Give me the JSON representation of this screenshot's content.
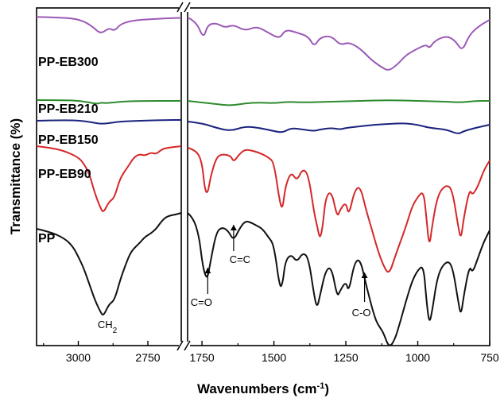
{
  "chart_data": {
    "type": "line",
    "title": "",
    "xlabel": "Wavenumbers (cm",
    "xlabel_sup": "-1",
    "xlabel_close": ")",
    "ylabel": "Transmittance (%)",
    "x_break": true,
    "x_reversed": true,
    "x_segments": [
      {
        "range": [
          3150,
          2630
        ],
        "ticks": [
          3000,
          2750
        ],
        "tick_labels": [
          "3000",
          "2750"
        ]
      },
      {
        "range": [
          1800,
          750
        ],
        "ticks": [
          1750,
          1500,
          1250,
          1000,
          750
        ],
        "tick_labels": [
          "1750",
          "1500",
          "1250",
          "1000",
          "750"
        ]
      }
    ],
    "grid": false,
    "series": [
      {
        "name": "PP-EB300",
        "color": "#9b59b6",
        "points": [
          [
            3150,
            0.4
          ],
          [
            3050,
            1
          ],
          [
            2990,
            4
          ],
          [
            2950,
            12
          ],
          [
            2920,
            22
          ],
          [
            2890,
            14
          ],
          [
            2870,
            18
          ],
          [
            2850,
            10
          ],
          [
            2820,
            6
          ],
          [
            2780,
            4
          ],
          [
            2730,
            3
          ],
          [
            2680,
            2
          ],
          [
            2630,
            1.5
          ],
          [
            1800,
            1
          ],
          [
            1770,
            6
          ],
          [
            1745,
            28
          ],
          [
            1730,
            10
          ],
          [
            1700,
            8
          ],
          [
            1670,
            14
          ],
          [
            1640,
            10
          ],
          [
            1600,
            18
          ],
          [
            1560,
            12
          ],
          [
            1520,
            20
          ],
          [
            1480,
            28
          ],
          [
            1460,
            16
          ],
          [
            1420,
            20
          ],
          [
            1380,
            25
          ],
          [
            1360,
            38
          ],
          [
            1340,
            26
          ],
          [
            1300,
            24
          ],
          [
            1270,
            36
          ],
          [
            1240,
            32
          ],
          [
            1200,
            40
          ],
          [
            1160,
            55
          ],
          [
            1120,
            65
          ],
          [
            1100,
            68
          ],
          [
            1070,
            60
          ],
          [
            1040,
            48
          ],
          [
            1000,
            40
          ],
          [
            970,
            35
          ],
          [
            960,
            40
          ],
          [
            940,
            30
          ],
          [
            900,
            24
          ],
          [
            870,
            30
          ],
          [
            845,
            44
          ],
          [
            820,
            22
          ],
          [
            780,
            10
          ],
          [
            750,
            4
          ]
        ]
      },
      {
        "name": "PP-EB210",
        "color": "#2e8b2e",
        "points": [
          [
            3150,
            0
          ],
          [
            3050,
            0
          ],
          [
            2990,
            1
          ],
          [
            2930,
            5
          ],
          [
            2920,
            3
          ],
          [
            2900,
            4
          ],
          [
            2850,
            2
          ],
          [
            2780,
            1
          ],
          [
            2630,
            1
          ],
          [
            1800,
            1
          ],
          [
            1750,
            3
          ],
          [
            1700,
            5
          ],
          [
            1650,
            7
          ],
          [
            1600,
            4
          ],
          [
            1550,
            3
          ],
          [
            1500,
            4
          ],
          [
            1450,
            2
          ],
          [
            1400,
            3
          ],
          [
            1300,
            2
          ],
          [
            1200,
            1
          ],
          [
            1100,
            0
          ],
          [
            1000,
            1
          ],
          [
            900,
            2
          ],
          [
            850,
            3
          ],
          [
            800,
            1
          ],
          [
            750,
            1
          ]
        ]
      },
      {
        "name": "PP-EB150",
        "color": "#1a237e",
        "points": [
          [
            3150,
            1
          ],
          [
            3050,
            0
          ],
          [
            2990,
            1
          ],
          [
            2950,
            3
          ],
          [
            2920,
            5
          ],
          [
            2890,
            4
          ],
          [
            2850,
            2
          ],
          [
            2780,
            1
          ],
          [
            2680,
            0
          ],
          [
            2630,
            0
          ],
          [
            1800,
            2
          ],
          [
            1750,
            4
          ],
          [
            1700,
            10
          ],
          [
            1650,
            14
          ],
          [
            1600,
            8
          ],
          [
            1550,
            10
          ],
          [
            1500,
            14
          ],
          [
            1470,
            16
          ],
          [
            1440,
            10
          ],
          [
            1400,
            12
          ],
          [
            1360,
            14
          ],
          [
            1340,
            12
          ],
          [
            1300,
            10
          ],
          [
            1270,
            12
          ],
          [
            1250,
            10
          ],
          [
            1200,
            8
          ],
          [
            1150,
            6
          ],
          [
            1100,
            5
          ],
          [
            1050,
            4
          ],
          [
            1000,
            6
          ],
          [
            960,
            10
          ],
          [
            900,
            12
          ],
          [
            860,
            18
          ],
          [
            840,
            14
          ],
          [
            800,
            10
          ],
          [
            750,
            6
          ]
        ]
      },
      {
        "name": "PP-EB90",
        "color": "#d62728",
        "points": [
          [
            3150,
            0
          ],
          [
            3100,
            2
          ],
          [
            3050,
            6
          ],
          [
            3000,
            14
          ],
          [
            2980,
            22
          ],
          [
            2960,
            35
          ],
          [
            2940,
            60
          ],
          [
            2920,
            78
          ],
          [
            2910,
            84
          ],
          [
            2890,
            70
          ],
          [
            2870,
            65
          ],
          [
            2850,
            40
          ],
          [
            2820,
            25
          ],
          [
            2800,
            14
          ],
          [
            2780,
            10
          ],
          [
            2760,
            12
          ],
          [
            2740,
            8
          ],
          [
            2720,
            10
          ],
          [
            2700,
            4
          ],
          [
            2680,
            2
          ],
          [
            2630,
            0
          ],
          [
            1800,
            2
          ],
          [
            1770,
            5
          ],
          [
            1750,
            20
          ],
          [
            1740,
            55
          ],
          [
            1730,
            60
          ],
          [
            1720,
            38
          ],
          [
            1700,
            14
          ],
          [
            1680,
            10
          ],
          [
            1650,
            12
          ],
          [
            1640,
            20
          ],
          [
            1620,
            10
          ],
          [
            1600,
            4
          ],
          [
            1570,
            6
          ],
          [
            1540,
            10
          ],
          [
            1520,
            14
          ],
          [
            1500,
            20
          ],
          [
            1480,
            70
          ],
          [
            1470,
            80
          ],
          [
            1460,
            50
          ],
          [
            1440,
            32
          ],
          [
            1420,
            44
          ],
          [
            1400,
            28
          ],
          [
            1380,
            36
          ],
          [
            1360,
            84
          ],
          [
            1350,
            100
          ],
          [
            1340,
            118
          ],
          [
            1330,
            100
          ],
          [
            1320,
            64
          ],
          [
            1300,
            56
          ],
          [
            1280,
            90
          ],
          [
            1270,
            80
          ],
          [
            1250,
            70
          ],
          [
            1240,
            88
          ],
          [
            1220,
            56
          ],
          [
            1200,
            50
          ],
          [
            1180,
            80
          ],
          [
            1160,
            104
          ],
          [
            1140,
            130
          ],
          [
            1120,
            150
          ],
          [
            1100,
            162
          ],
          [
            1080,
            140
          ],
          [
            1060,
            120
          ],
          [
            1040,
            100
          ],
          [
            1020,
            76
          ],
          [
            1000,
            64
          ],
          [
            980,
            56
          ],
          [
            970,
            90
          ],
          [
            960,
            128
          ],
          [
            950,
            100
          ],
          [
            930,
            60
          ],
          [
            900,
            48
          ],
          [
            880,
            55
          ],
          [
            860,
            100
          ],
          [
            850,
            118
          ],
          [
            840,
            90
          ],
          [
            820,
            54
          ],
          [
            810,
            62
          ],
          [
            790,
            50
          ],
          [
            770,
            30
          ],
          [
            750,
            18
          ]
        ]
      },
      {
        "name": "PP",
        "color": "#111111",
        "points": [
          [
            3150,
            20
          ],
          [
            3100,
            24
          ],
          [
            3050,
            32
          ],
          [
            3020,
            42
          ],
          [
            3000,
            55
          ],
          [
            2980,
            70
          ],
          [
            2960,
            90
          ],
          [
            2940,
            110
          ],
          [
            2920,
            125
          ],
          [
            2910,
            130
          ],
          [
            2890,
            115
          ],
          [
            2870,
            110
          ],
          [
            2850,
            85
          ],
          [
            2830,
            65
          ],
          [
            2810,
            48
          ],
          [
            2780,
            38
          ],
          [
            2760,
            30
          ],
          [
            2740,
            26
          ],
          [
            2720,
            20
          ],
          [
            2700,
            10
          ],
          [
            2680,
            4
          ],
          [
            2650,
            2
          ],
          [
            2630,
            0
          ],
          [
            1800,
            0
          ],
          [
            1780,
            6
          ],
          [
            1760,
            30
          ],
          [
            1750,
            60
          ],
          [
            1740,
            78
          ],
          [
            1730,
            82
          ],
          [
            1720,
            60
          ],
          [
            1700,
            24
          ],
          [
            1680,
            18
          ],
          [
            1660,
            22
          ],
          [
            1640,
            35
          ],
          [
            1620,
            20
          ],
          [
            1600,
            10
          ],
          [
            1580,
            12
          ],
          [
            1560,
            16
          ],
          [
            1540,
            20
          ],
          [
            1520,
            30
          ],
          [
            1500,
            40
          ],
          [
            1480,
            94
          ],
          [
            1470,
            90
          ],
          [
            1460,
            60
          ],
          [
            1440,
            52
          ],
          [
            1420,
            62
          ],
          [
            1400,
            50
          ],
          [
            1380,
            56
          ],
          [
            1360,
            104
          ],
          [
            1350,
            120
          ],
          [
            1340,
            104
          ],
          [
            1320,
            72
          ],
          [
            1300,
            68
          ],
          [
            1280,
            106
          ],
          [
            1270,
            98
          ],
          [
            1250,
            86
          ],
          [
            1240,
            100
          ],
          [
            1220,
            62
          ],
          [
            1200,
            58
          ],
          [
            1180,
            90
          ],
          [
            1160,
            118
          ],
          [
            1150,
            130
          ],
          [
            1140,
            140
          ],
          [
            1120,
            150
          ],
          [
            1100,
            170
          ],
          [
            1080,
            160
          ],
          [
            1060,
            136
          ],
          [
            1040,
            110
          ],
          [
            1020,
            86
          ],
          [
            1000,
            72
          ],
          [
            980,
            66
          ],
          [
            970,
            110
          ],
          [
            960,
            140
          ],
          [
            950,
            124
          ],
          [
            930,
            76
          ],
          [
            900,
            60
          ],
          [
            880,
            66
          ],
          [
            860,
            110
          ],
          [
            850,
            130
          ],
          [
            840,
            104
          ],
          [
            820,
            66
          ],
          [
            810,
            76
          ],
          [
            790,
            56
          ],
          [
            770,
            36
          ],
          [
            750,
            22
          ]
        ]
      }
    ],
    "annotations": [
      {
        "text_main": "CH",
        "text_sub": "2",
        "x": 2910
      },
      {
        "text": "C=O",
        "x": 1730
      },
      {
        "text": "C=C",
        "x": 1640
      },
      {
        "text": "C-O",
        "x": 1185
      }
    ]
  }
}
